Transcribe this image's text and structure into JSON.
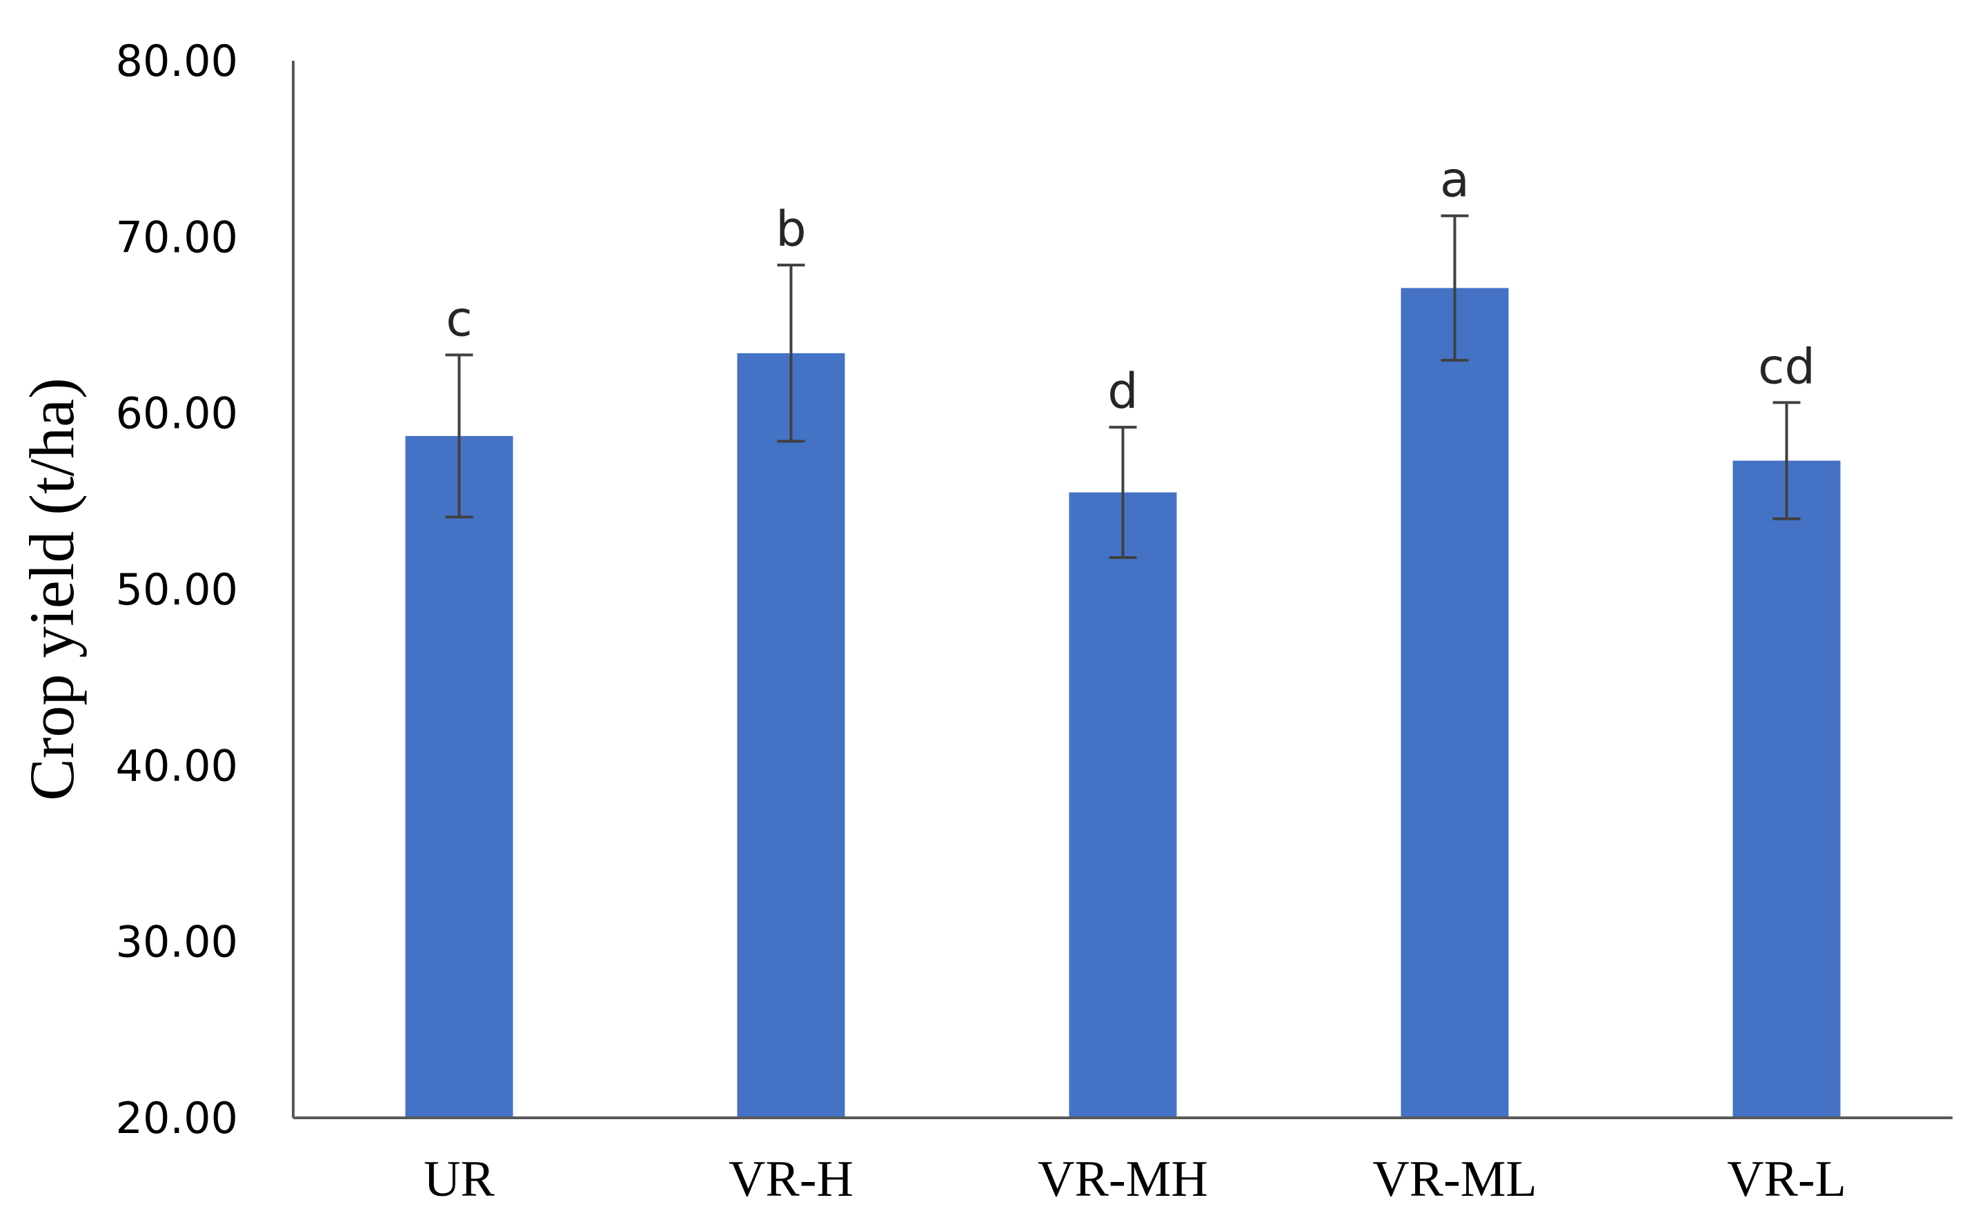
{
  "chart_data": {
    "type": "bar",
    "title": "",
    "xlabel": "",
    "ylabel": "Crop yield (t/ha)",
    "ylim": [
      20,
      80
    ],
    "yticks": [
      "20.00",
      "30.00",
      "40.00",
      "50.00",
      "60.00",
      "70.00",
      "80.00"
    ],
    "categories": [
      "UR",
      "VR-H",
      "VR-MH",
      "VR-ML",
      "VR-L"
    ],
    "values": [
      58.7,
      63.4,
      55.5,
      67.1,
      57.3
    ],
    "error": [
      4.6,
      5.0,
      3.7,
      4.1,
      3.3
    ],
    "annotations": [
      "c",
      "b",
      "d",
      "a",
      "cd"
    ],
    "grid": false,
    "legend": "none",
    "colors": {
      "bar": "#4472C4",
      "error_bar": "#404040",
      "axis": "#595959"
    }
  }
}
